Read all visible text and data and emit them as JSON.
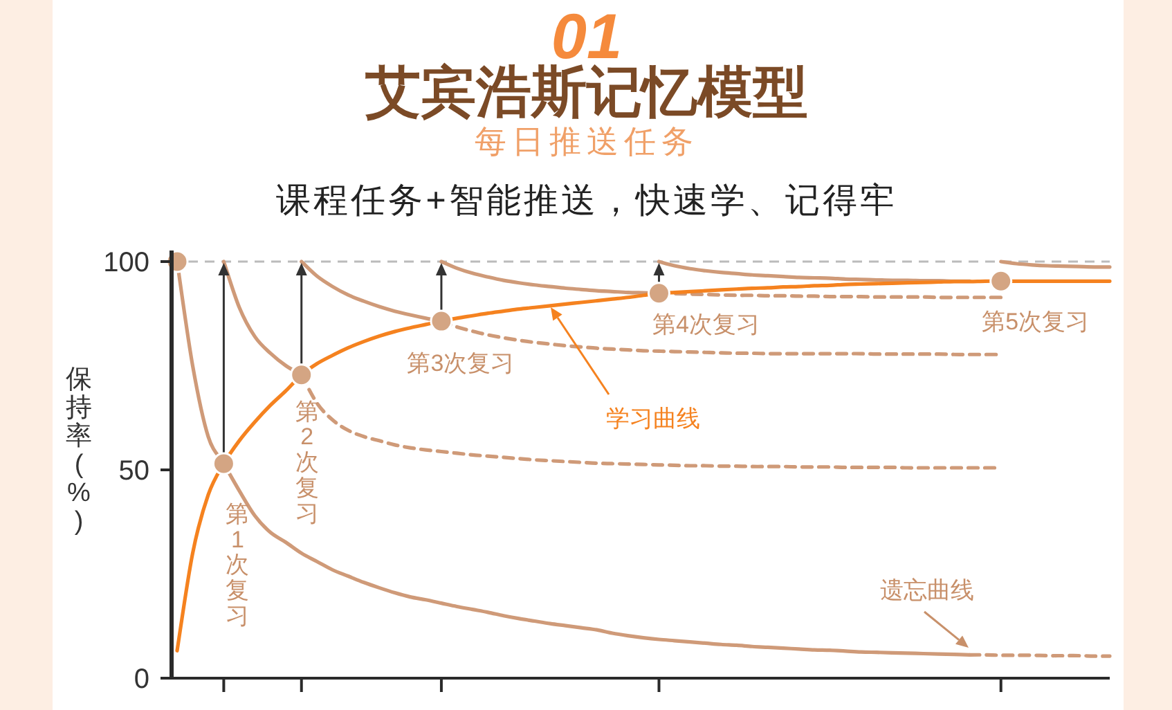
{
  "chart_data": {
    "type": "line",
    "title": "艾宾浩斯记忆模型",
    "subtitle": "每日推送任务",
    "ylabel": "保持率(%)",
    "annotations": [
      "01",
      "课程任务+智能推送，快速学、记得牢",
      "第1次复习",
      "第2次复习",
      "第3次复习",
      "第4次复习",
      "第5次复习",
      "学习曲线",
      "遗忘曲线"
    ],
    "categories": [
      null,
      null,
      null,
      null,
      null,
      null,
      null,
      null,
      null,
      null,
      null,
      null,
      null,
      null,
      null,
      null,
      null,
      null,
      null,
      null,
      null,
      null,
      null,
      null,
      null,
      null,
      null,
      null,
      null,
      null,
      null,
      null,
      null,
      null,
      null,
      null,
      null,
      null,
      null,
      null,
      null,
      null,
      null,
      null,
      null,
      null,
      null,
      null,
      null,
      null,
      null,
      null,
      null,
      null,
      null,
      null,
      null,
      null,
      null,
      null,
      null
    ],
    "ylim": [
      0,
      100
    ],
    "yticks": [
      0,
      50,
      100
    ],
    "grid": false,
    "ref_lines": [
      {
        "axis": "y",
        "value": 100,
        "color": "#bbbbbb",
        "line_style": "dashed"
      }
    ],
    "series": [
      {
        "color": "#cf9a78",
        "line_style": "solid",
        "values": [
          100,
          75,
          58,
          51.5,
          45,
          39,
          35,
          32.6,
          30,
          28,
          26,
          24.5,
          23,
          21.7,
          20.5,
          19.5,
          18.8,
          18,
          17.2,
          16.5,
          15.8,
          15,
          14.3,
          13.7,
          13.1,
          12.6,
          12.1,
          11.6,
          10.8,
          10.2,
          9.7,
          9.3,
          9.0,
          8.7,
          8.4,
          8.1,
          7.9,
          7.6,
          7.4,
          7.2,
          7.0,
          6.8,
          6.7,
          6.5,
          6.3,
          6.2,
          6.1,
          6.0,
          5.9,
          5.8,
          5.7,
          5.6,
          null,
          null,
          null,
          null,
          null,
          null,
          null,
          null,
          null
        ]
      },
      {
        "color": "#cf9a78",
        "line_style": "dashed",
        "values": [
          null,
          null,
          null,
          null,
          null,
          null,
          null,
          null,
          null,
          null,
          null,
          null,
          null,
          null,
          null,
          null,
          null,
          null,
          null,
          null,
          null,
          null,
          null,
          null,
          null,
          null,
          null,
          null,
          null,
          null,
          null,
          null,
          null,
          null,
          null,
          null,
          null,
          null,
          null,
          null,
          null,
          null,
          null,
          null,
          null,
          null,
          null,
          null,
          null,
          null,
          null,
          5.6,
          5.6,
          5.5,
          5.5,
          5.5,
          5.4,
          5.4,
          5.4,
          5.3,
          5.3
        ]
      },
      {
        "color": "#cf9a78",
        "line_style": "solid",
        "values": [
          null,
          null,
          null,
          100,
          89,
          82,
          78,
          75,
          72.8,
          null,
          null,
          null,
          null,
          null,
          null,
          null,
          null,
          null,
          null,
          null,
          null,
          null,
          null,
          null,
          null,
          null,
          null,
          null,
          null,
          null,
          null,
          null,
          null,
          null,
          null,
          null,
          null,
          null,
          null,
          null,
          null,
          null,
          null,
          null,
          null,
          null,
          null,
          null,
          null,
          null,
          null,
          null,
          null,
          null,
          null,
          null,
          null,
          null,
          null,
          null,
          null
        ]
      },
      {
        "color": "#cf9a78",
        "line_style": "dashed",
        "values": [
          null,
          null,
          null,
          null,
          null,
          null,
          null,
          null,
          72.8,
          66,
          62,
          59.5,
          58,
          57,
          56,
          55.3,
          54.8,
          54.4,
          54,
          53.6,
          53.3,
          53,
          52.7,
          52.4,
          52.2,
          52,
          51.8,
          51.6,
          51.5,
          51.4,
          51.3,
          51.2,
          51.1,
          51,
          51,
          50.9,
          50.9,
          50.8,
          50.8,
          50.8,
          50.7,
          50.7,
          50.7,
          50.6,
          50.6,
          50.6,
          50.6,
          50.5,
          50.5,
          50.5,
          50.5,
          50.5,
          50.5,
          50.5,
          null,
          null,
          null,
          null,
          null,
          null,
          null
        ]
      },
      {
        "color": "#cf9a78",
        "line_style": "solid",
        "values": [
          null,
          null,
          null,
          null,
          null,
          null,
          null,
          null,
          100,
          96.5,
          94,
          92,
          90.5,
          89.2,
          88.1,
          87.2,
          86.4,
          85.7,
          null,
          null,
          null,
          null,
          null,
          null,
          null,
          null,
          null,
          null,
          null,
          null,
          null,
          null,
          null,
          null,
          null,
          null,
          null,
          null,
          null,
          null,
          null,
          null,
          null,
          null,
          null,
          null,
          null,
          null,
          null,
          null,
          null,
          null,
          null,
          null,
          null,
          null,
          null,
          null,
          null,
          null,
          null
        ]
      },
      {
        "color": "#cf9a78",
        "line_style": "dashed",
        "values": [
          null,
          null,
          null,
          null,
          null,
          null,
          null,
          null,
          null,
          null,
          null,
          null,
          null,
          null,
          null,
          null,
          null,
          85.7,
          84.3,
          83.3,
          82.4,
          81.7,
          81.1,
          80.6,
          80.2,
          79.8,
          79.5,
          79.2,
          79.0,
          78.8,
          78.6,
          78.5,
          78.4,
          78.3,
          78.2,
          78.1,
          78.0,
          78.0,
          77.9,
          77.9,
          77.9,
          77.9,
          77.9,
          77.9,
          77.9,
          77.8,
          77.8,
          77.8,
          77.8,
          77.8,
          77.7,
          77.7,
          77.7,
          77.7,
          null,
          null,
          null,
          null,
          null,
          null,
          null
        ]
      },
      {
        "color": "#cf9a78",
        "line_style": "solid",
        "values": [
          null,
          null,
          null,
          null,
          null,
          null,
          null,
          null,
          null,
          null,
          null,
          null,
          null,
          null,
          null,
          null,
          null,
          100,
          98.4,
          97.2,
          96.3,
          95.5,
          94.9,
          94.4,
          94.0,
          93.6,
          93.3,
          93.0,
          92.8,
          92.6,
          92.5,
          92.4,
          null,
          null,
          null,
          null,
          null,
          null,
          null,
          null,
          null,
          null,
          null,
          null,
          null,
          null,
          null,
          null,
          null,
          null,
          null,
          null,
          null,
          null,
          null,
          null,
          null,
          null,
          null,
          null,
          null
        ]
      },
      {
        "color": "#cf9a78",
        "line_style": "dashed",
        "values": [
          null,
          null,
          null,
          null,
          null,
          null,
          null,
          null,
          null,
          null,
          null,
          null,
          null,
          null,
          null,
          null,
          null,
          null,
          null,
          null,
          null,
          null,
          null,
          null,
          null,
          null,
          null,
          null,
          null,
          null,
          null,
          92.4,
          92.3,
          92.2,
          92.1,
          92.0,
          91.9,
          91.9,
          91.8,
          91.8,
          91.7,
          91.7,
          91.6,
          91.6,
          91.6,
          91.5,
          91.5,
          91.5,
          91.5,
          91.4,
          91.4,
          91.4,
          91.4,
          91.4,
          null,
          null,
          null,
          null,
          null,
          null,
          null
        ]
      },
      {
        "color": "#cf9a78",
        "line_style": "solid",
        "values": [
          null,
          null,
          null,
          null,
          null,
          null,
          null,
          null,
          null,
          null,
          null,
          null,
          null,
          null,
          null,
          null,
          null,
          null,
          null,
          null,
          null,
          null,
          null,
          null,
          null,
          null,
          null,
          null,
          null,
          null,
          null,
          100,
          99.0,
          98.3,
          97.8,
          97.4,
          97.1,
          96.8,
          96.6,
          96.4,
          96.2,
          96.1,
          96.0,
          95.8,
          95.7,
          95.6,
          95.5,
          95.5,
          95.4,
          95.4,
          95.3,
          95.3,
          null,
          null,
          null,
          null,
          null,
          null,
          null,
          null,
          null
        ]
      },
      {
        "color": "#cf9a78",
        "line_style": "solid",
        "values": [
          null,
          null,
          null,
          null,
          null,
          null,
          null,
          null,
          null,
          null,
          null,
          null,
          null,
          null,
          null,
          null,
          null,
          null,
          null,
          null,
          null,
          null,
          null,
          null,
          null,
          null,
          null,
          null,
          null,
          null,
          null,
          null,
          null,
          null,
          null,
          null,
          null,
          null,
          null,
          null,
          null,
          null,
          null,
          null,
          null,
          null,
          null,
          null,
          null,
          null,
          null,
          null,
          null,
          100,
          99.5,
          99.2,
          99.0,
          98.9,
          98.8,
          98.7,
          98.7
        ]
      },
      {
        "color": "#f5821f",
        "line_style": "solid",
        "values": [
          6.6,
          30,
          44,
          51.5,
          57,
          61.5,
          65.5,
          69,
          72.8,
          75.5,
          77.5,
          79.3,
          80.8,
          82.1,
          83.2,
          84.1,
          84.9,
          85.7,
          86.4,
          87.0,
          87.6,
          88.1,
          88.6,
          89.0,
          89.4,
          89.8,
          90.2,
          90.6,
          91.0,
          91.4,
          91.9,
          92.4,
          92.6,
          92.8,
          93.0,
          93.2,
          93.4,
          93.6,
          93.7,
          93.9,
          94.0,
          94.2,
          94.3,
          94.5,
          94.6,
          94.7,
          94.8,
          94.9,
          95.0,
          95.1,
          95.2,
          95.2,
          95.3,
          95.3,
          95.3,
          95.3,
          95.3,
          95.3,
          95.3,
          95.3,
          95.3
        ]
      },
      {
        "type": "scatter",
        "color": "#d4a583",
        "marker": "circle",
        "values": [
          100,
          null,
          null,
          51.5,
          null,
          null,
          null,
          null,
          72.8,
          null,
          null,
          null,
          null,
          null,
          null,
          null,
          null,
          85.7,
          null,
          null,
          null,
          null,
          null,
          null,
          null,
          null,
          null,
          null,
          null,
          null,
          null,
          92.4,
          null,
          null,
          null,
          null,
          null,
          null,
          null,
          null,
          null,
          null,
          null,
          null,
          null,
          null,
          null,
          null,
          null,
          null,
          null,
          null,
          null,
          95.3,
          null,
          null,
          null,
          null,
          null,
          null,
          null
        ]
      }
    ]
  }
}
